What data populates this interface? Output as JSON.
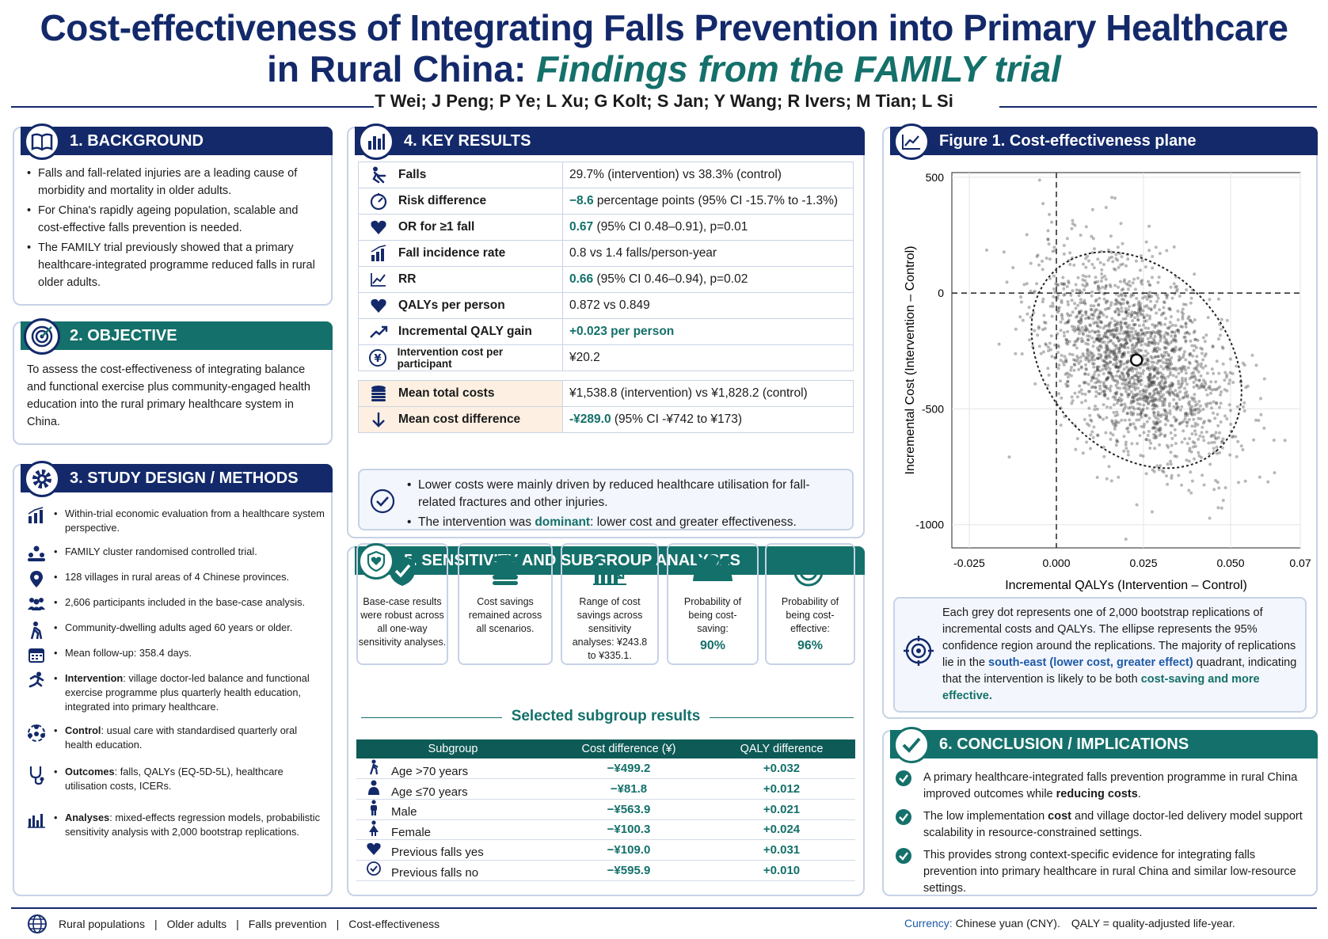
{
  "title": {
    "line1": "Cost-effectiveness of Integrating Falls Prevention into Primary Healthcare",
    "line2a": "in Rural China: ",
    "line2b": "Findings from the FAMILY trial"
  },
  "authors": "T Wei; J Peng; P Ye; L Xu; G Kolt; S Jan; Y Wang; R Ivers; M Tian; L Si",
  "background": {
    "heading": "1. BACKGROUND",
    "bullets": [
      "Falls and fall-related injuries are a leading cause of morbidity and mortality in older adults.",
      "For China's rapidly ageing population, scalable and cost-effective falls prevention is needed.",
      "The FAMILY trial previously showed that a primary healthcare-integrated programme reduced falls in rural older adults."
    ]
  },
  "objective": {
    "heading": "2. OBJECTIVE",
    "text": "To assess the cost-effectiveness of integrating balance and functional exercise plus community-engaged health education into the rural primary healthcare system in China."
  },
  "methods": {
    "heading": "3. STUDY DESIGN / METHODS",
    "items": [
      {
        "icon": "bar-chart-icon",
        "text": "Within-trial economic evaluation from a healthcare system perspective."
      },
      {
        "icon": "people-pyramid-icon",
        "text": "FAMILY cluster randomised controlled trial."
      },
      {
        "icon": "location-pin-icon",
        "text": "128 villages in rural areas of 4 Chinese provinces."
      },
      {
        "icon": "group-icon",
        "text": "2,606 participants included in the base-case analysis."
      },
      {
        "icon": "elderly-walker-icon",
        "text": "Community-dwelling adults aged 60 years or older."
      },
      {
        "icon": "calendar-icon",
        "text": "Mean follow-up: 358.4 days."
      },
      {
        "icon": "runner-icon",
        "bold": "Intervention",
        "text": ": village doctor-led balance and functional exercise programme plus quarterly health education, integrated into primary healthcare."
      },
      {
        "icon": "community-icon",
        "bold": "Control",
        "text": ": usual care with standardised quarterly oral health education."
      },
      {
        "icon": "stethoscope-icon",
        "bold": "Outcomes",
        "text": ": falls, QALYs (EQ-5D-5L), healthcare utilisation costs, ICERs."
      },
      {
        "icon": "analysis-chart-icon",
        "bold": "Analyses",
        "text": ": mixed-effects regression models, probabilistic sensitivity analysis with 2,000 bootstrap replications."
      }
    ]
  },
  "results": {
    "heading": "4. KEY RESULTS",
    "rows": [
      {
        "icon": "fall-icon",
        "label": "Falls",
        "value": "29.7% (intervention) vs 38.3% (control)"
      },
      {
        "icon": "gauge-icon",
        "label": "Risk difference",
        "hl": "−8.6",
        "value": " percentage points (95% CI -15.7% to -1.3%)"
      },
      {
        "icon": "heart-icon",
        "label": "OR for ≥1 fall",
        "hl": "0.67",
        "value": "  (95% CI 0.48–0.91), p=0.01"
      },
      {
        "icon": "rising-bars-icon",
        "label": "Fall incidence rate",
        "value": "0.8 vs 1.4 falls/person-year"
      },
      {
        "icon": "line-chart-icon",
        "label": "RR",
        "hl": "0.66",
        "value": "  (95% CI 0.46–0.94), p=0.02"
      },
      {
        "icon": "heart-icon",
        "label": "QALYs per person",
        "value": "0.872 vs 0.849"
      },
      {
        "icon": "trend-up-icon",
        "label": "Incremental QALY gain",
        "hl": "+0.023 per person",
        "value": ""
      },
      {
        "icon": "cost-cycle-icon",
        "label": "Intervention cost per participant",
        "value": "¥20.2"
      }
    ],
    "cost_rows": [
      {
        "icon": "coins-icon",
        "label": "Mean total costs",
        "value": "¥1,538.8 (intervention) vs ¥1,828.2 (control)"
      },
      {
        "icon": "arrow-down-icon",
        "label": "Mean cost difference",
        "hl": "-¥289.0",
        "value": "  (95% CI -¥742 to ¥173)"
      }
    ],
    "notes": [
      "Lower costs were mainly driven by reduced healthcare utilisation for fall-related fractures and other injuries.",
      {
        "a": "The intervention was ",
        "b": "dominant",
        "c": ": lower cost and greater effectiveness."
      }
    ]
  },
  "sensitivity": {
    "heading": "5. SENSITIVITY AND SUBGROUP ANALYSES",
    "cards": [
      {
        "icon": "shield-check-icon",
        "text": "Base-case results were robust across all one-way sensitivity analyses."
      },
      {
        "icon": "coin-stack-icon",
        "text": "Cost savings remained across all scenarios."
      },
      {
        "icon": "falling-bars-icon",
        "text": "Range of cost savings across sensitivity analyses: ¥243.8 to ¥335.1."
      },
      {
        "icon": "people-icon",
        "text": "Probability of being cost-saving:",
        "value": "90%"
      },
      {
        "icon": "target-icon",
        "text": "Probability of being cost-effective:",
        "value": "96%"
      }
    ],
    "subgroup_title": "Selected subgroup results",
    "columns": [
      "Subgroup",
      "Cost difference (¥)",
      "QALY difference"
    ],
    "rows": [
      {
        "icon": "older-person-icon",
        "name": "Age >70 years",
        "cost": "−¥499.2",
        "qaly": "+0.032"
      },
      {
        "icon": "person-icon",
        "name": "Age ≤70 years",
        "cost": "−¥81.8",
        "qaly": "+0.012"
      },
      {
        "icon": "male-icon",
        "name": "Male",
        "cost": "−¥563.9",
        "qaly": "+0.021"
      },
      {
        "icon": "female-icon",
        "name": "Female",
        "cost": "−¥100.3",
        "qaly": "+0.024"
      },
      {
        "icon": "heart-icon",
        "name": "Previous falls yes",
        "cost": "−¥109.0",
        "qaly": "+0.031"
      },
      {
        "icon": "check-circle-icon",
        "name": "Previous falls no",
        "cost": "−¥595.9",
        "qaly": "+0.010"
      }
    ]
  },
  "figure": {
    "heading": "Figure 1. Cost-effectiveness plane",
    "caption": {
      "a": "Each grey dot represents one of 2,000 bootstrap replications of incremental costs and QALYs. The ellipse represents the 95% confidence region around the replications. The majority of replications lie in the ",
      "b": "south-east (lower cost, greater effect)",
      "c": " quadrant, indicating that the intervention is likely to be both ",
      "d": "cost-saving and more effective."
    }
  },
  "chart_data": {
    "type": "scatter",
    "xlabel": "Incremental QALYs (Intervention – Control)",
    "ylabel": "Incremental Cost (Intervention – Control)",
    "xlim": [
      -0.03,
      0.07
    ],
    "ylim": [
      -1100,
      520
    ],
    "xticks": [
      "-0.025",
      "0.000",
      "0.025",
      "0.050",
      "0.07"
    ],
    "xtick_values": [
      -0.025,
      0,
      0.025,
      0.05,
      0.07
    ],
    "yticks": [
      "500",
      "0",
      "-500",
      "-1000"
    ],
    "ytick_values": [
      500,
      0,
      -500,
      -1000
    ],
    "n_points": 2000,
    "mean": {
      "x": 0.023,
      "y": -289
    },
    "grid": true
  },
  "conclusion": {
    "heading": "6. CONCLUSION / IMPLICATIONS",
    "items": [
      {
        "a": "A primary healthcare-integrated falls prevention programme in rural China improved outcomes while ",
        "b": "reducing costs",
        "c": "."
      },
      {
        "a": "The low implementation ",
        "b": "cost",
        "c": " and village doctor-led delivery model support scalability in resource-constrained settings."
      },
      {
        "a": "This provides strong context-specific evidence for integrating falls prevention into primary healthcare in rural China and similar low-resource settings.",
        "b": "",
        "c": ""
      }
    ]
  },
  "footer": {
    "keywords": [
      "Rural populations",
      "Older adults",
      "Falls prevention",
      "Cost-effectiveness"
    ],
    "currency_label": "Currency:",
    "currency": " Chinese yuan (CNY).",
    "qaly": "QALY = quality-adjusted life-year."
  }
}
